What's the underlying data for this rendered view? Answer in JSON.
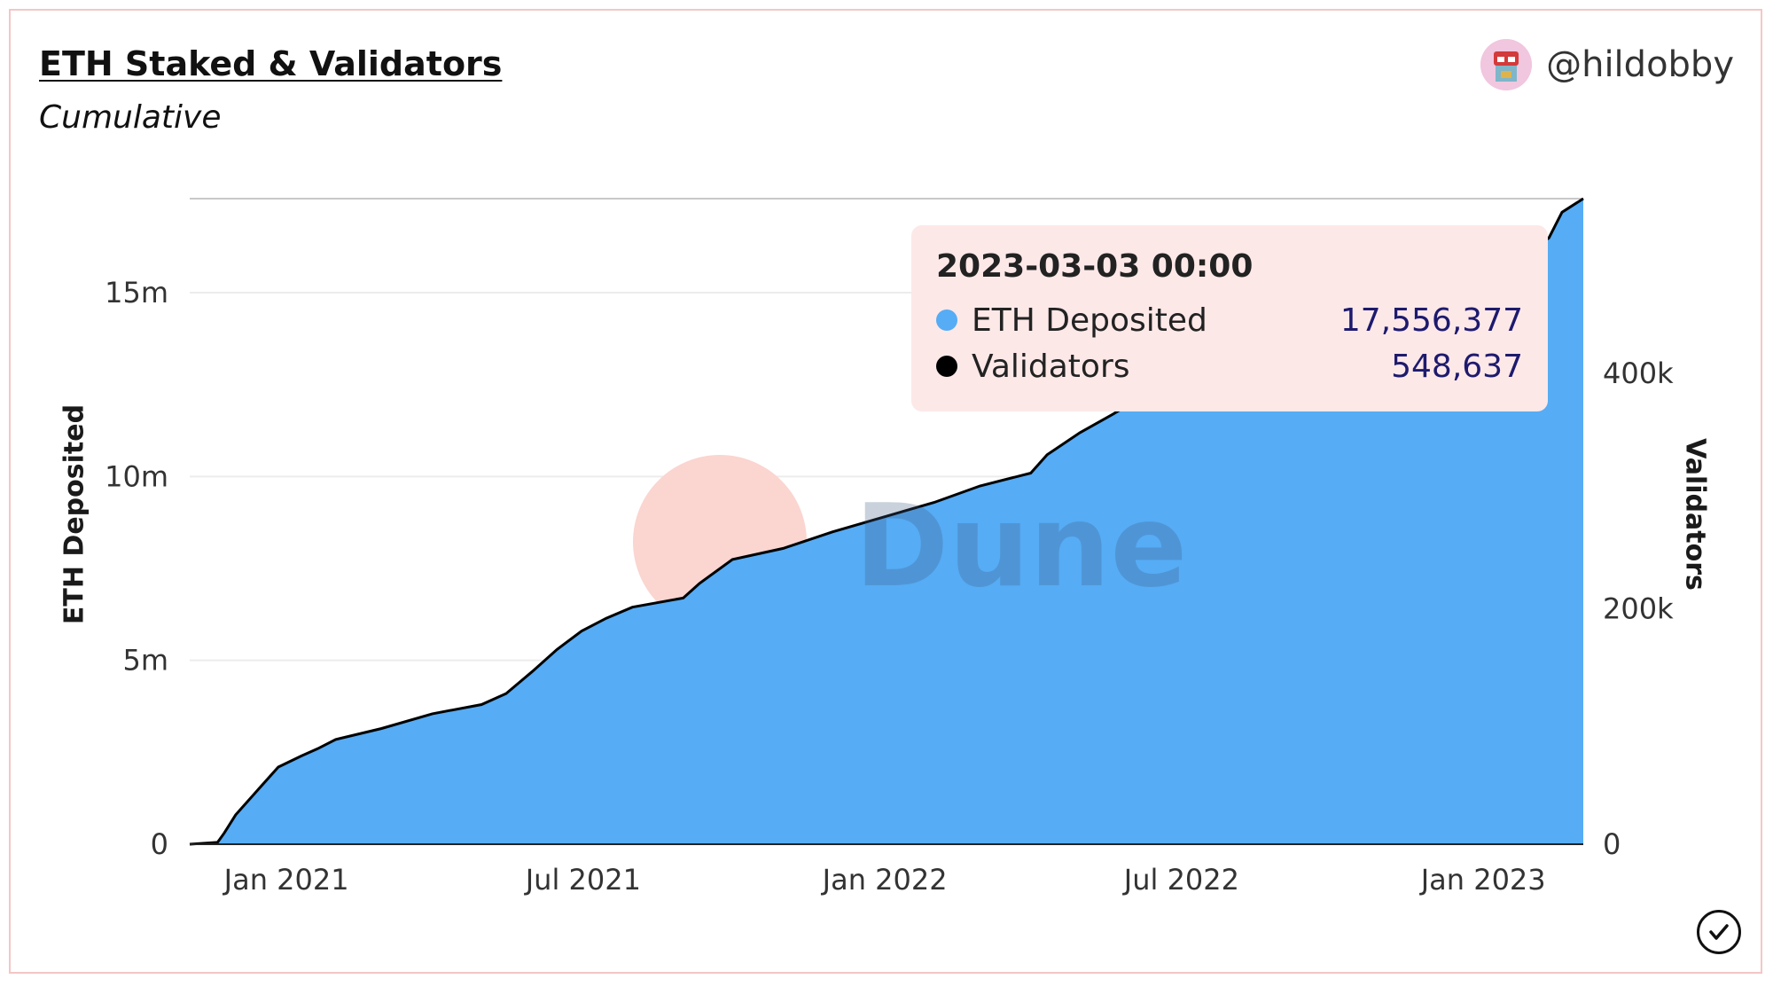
{
  "header": {
    "title": "ETH Staked & Validators",
    "subtitle": "Cumulative",
    "author": "@hildobby"
  },
  "icons": {
    "avatar": "avatar-icon",
    "check": "check-circle-icon"
  },
  "watermark": "Dune",
  "colors": {
    "area": "#56acf5",
    "line": "#000000",
    "border": "#f4c6c6",
    "tooltip_bg": "#fde8e8",
    "tooltip_value": "#1d1a6e",
    "watermark_circle": "#fbd5d0"
  },
  "tooltip": {
    "date": "2023-03-03 00:00",
    "rows": [
      {
        "label": "ETH Deposited",
        "value": "17,556,377",
        "color": "#56acf5"
      },
      {
        "label": "Validators",
        "value": "548,637",
        "color": "#000000"
      }
    ]
  },
  "chart_data": {
    "type": "area",
    "title": "ETH Staked & Validators",
    "subtitle": "Cumulative",
    "x_ticks": [
      "Jan 2021",
      "Jul 2021",
      "Jan 2022",
      "Jul 2022",
      "Jan 2023"
    ],
    "y_left": {
      "label": "ETH Deposited",
      "ticks": [
        "0",
        "5m",
        "10m",
        "15m"
      ],
      "range": [
        0,
        17556377
      ]
    },
    "y_right": {
      "label": "Validators",
      "ticks": [
        "0",
        "200k",
        "400k"
      ],
      "range": [
        0,
        548637
      ]
    },
    "x_range": [
      "2020-11-03",
      "2023-03-03"
    ],
    "series": [
      {
        "name": "ETH Deposited",
        "axis": "left",
        "style": "area",
        "points": [
          [
            "2020-11-03",
            0
          ],
          [
            "2020-11-20",
            50000
          ],
          [
            "2020-11-24",
            300000
          ],
          [
            "2020-12-01",
            800000
          ],
          [
            "2020-12-15",
            1500000
          ],
          [
            "2020-12-27",
            2100000
          ],
          [
            "2021-01-10",
            2400000
          ],
          [
            "2021-01-20",
            2600000
          ],
          [
            "2021-01-31",
            2850000
          ],
          [
            "2021-02-28",
            3150000
          ],
          [
            "2021-03-31",
            3550000
          ],
          [
            "2021-04-30",
            3800000
          ],
          [
            "2021-05-15",
            4100000
          ],
          [
            "2021-05-31",
            4700000
          ],
          [
            "2021-06-15",
            5300000
          ],
          [
            "2021-06-30",
            5800000
          ],
          [
            "2021-07-15",
            6150000
          ],
          [
            "2021-07-31",
            6450000
          ],
          [
            "2021-08-31",
            6700000
          ],
          [
            "2021-09-10",
            7100000
          ],
          [
            "2021-09-30",
            7750000
          ],
          [
            "2021-10-31",
            8050000
          ],
          [
            "2021-11-30",
            8500000
          ],
          [
            "2021-12-31",
            8900000
          ],
          [
            "2022-01-31",
            9300000
          ],
          [
            "2022-02-28",
            9750000
          ],
          [
            "2022-03-31",
            10100000
          ],
          [
            "2022-04-10",
            10600000
          ],
          [
            "2022-04-30",
            11200000
          ],
          [
            "2022-05-20",
            11700000
          ],
          [
            "2022-06-30",
            12800000
          ],
          [
            "2022-08-31",
            13600000
          ],
          [
            "2022-10-31",
            14600000
          ],
          [
            "2022-12-31",
            15500000
          ],
          [
            "2023-01-31",
            16200000
          ],
          [
            "2023-02-10",
            16500000
          ],
          [
            "2023-02-18",
            17200000
          ],
          [
            "2023-03-03",
            17556377
          ]
        ]
      },
      {
        "name": "Validators",
        "axis": "right",
        "style": "line",
        "points": [
          [
            "2020-11-03",
            0
          ],
          [
            "2020-11-20",
            1560
          ],
          [
            "2020-11-24",
            9370
          ],
          [
            "2020-12-01",
            24980
          ],
          [
            "2020-12-15",
            46840
          ],
          [
            "2020-12-27",
            65580
          ],
          [
            "2021-01-10",
            74950
          ],
          [
            "2021-01-20",
            81190
          ],
          [
            "2021-01-31",
            89000
          ],
          [
            "2021-02-28",
            98370
          ],
          [
            "2021-03-31",
            110860
          ],
          [
            "2021-04-30",
            118670
          ],
          [
            "2021-05-15",
            128040
          ],
          [
            "2021-05-31",
            146770
          ],
          [
            "2021-06-15",
            165510
          ],
          [
            "2021-06-30",
            181120
          ],
          [
            "2021-07-15",
            192050
          ],
          [
            "2021-07-31",
            201420
          ],
          [
            "2021-08-31",
            209230
          ],
          [
            "2021-09-10",
            221720
          ],
          [
            "2021-09-30",
            242020
          ],
          [
            "2021-10-31",
            251390
          ],
          [
            "2021-11-30",
            265440
          ],
          [
            "2021-12-31",
            277930
          ],
          [
            "2022-01-31",
            290420
          ],
          [
            "2022-02-28",
            304470
          ],
          [
            "2022-03-31",
            315400
          ],
          [
            "2022-04-10",
            331020
          ],
          [
            "2022-04-30",
            349750
          ],
          [
            "2022-05-20",
            365370
          ],
          [
            "2022-06-30",
            399720
          ],
          [
            "2022-08-31",
            424700
          ],
          [
            "2022-10-31",
            455920
          ],
          [
            "2022-12-31",
            484030
          ],
          [
            "2023-01-31",
            505890
          ],
          [
            "2023-02-10",
            515260
          ],
          [
            "2023-02-18",
            537120
          ],
          [
            "2023-03-03",
            548637
          ]
        ]
      }
    ],
    "grid": true,
    "legend": "tooltip"
  }
}
